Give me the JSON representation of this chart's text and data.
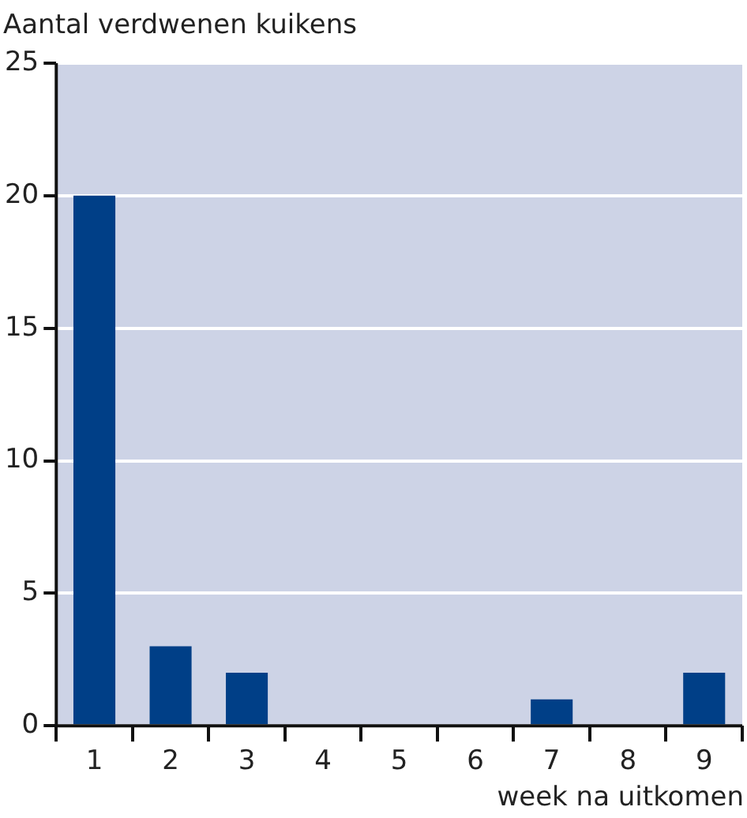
{
  "chart_data": {
    "type": "bar",
    "ylabel": "Aantal verdwenen kuikens",
    "xlabel": "week na uitkomen",
    "categories": [
      "1",
      "2",
      "3",
      "4",
      "5",
      "6",
      "7",
      "8",
      "9"
    ],
    "values": [
      20,
      3,
      2,
      0,
      0,
      0,
      1,
      0,
      2
    ],
    "color": "#003f87",
    "ylim": [
      0,
      25
    ],
    "yticks": [
      0,
      5,
      10,
      15,
      20,
      25
    ],
    "grid": "y",
    "legend": false
  }
}
